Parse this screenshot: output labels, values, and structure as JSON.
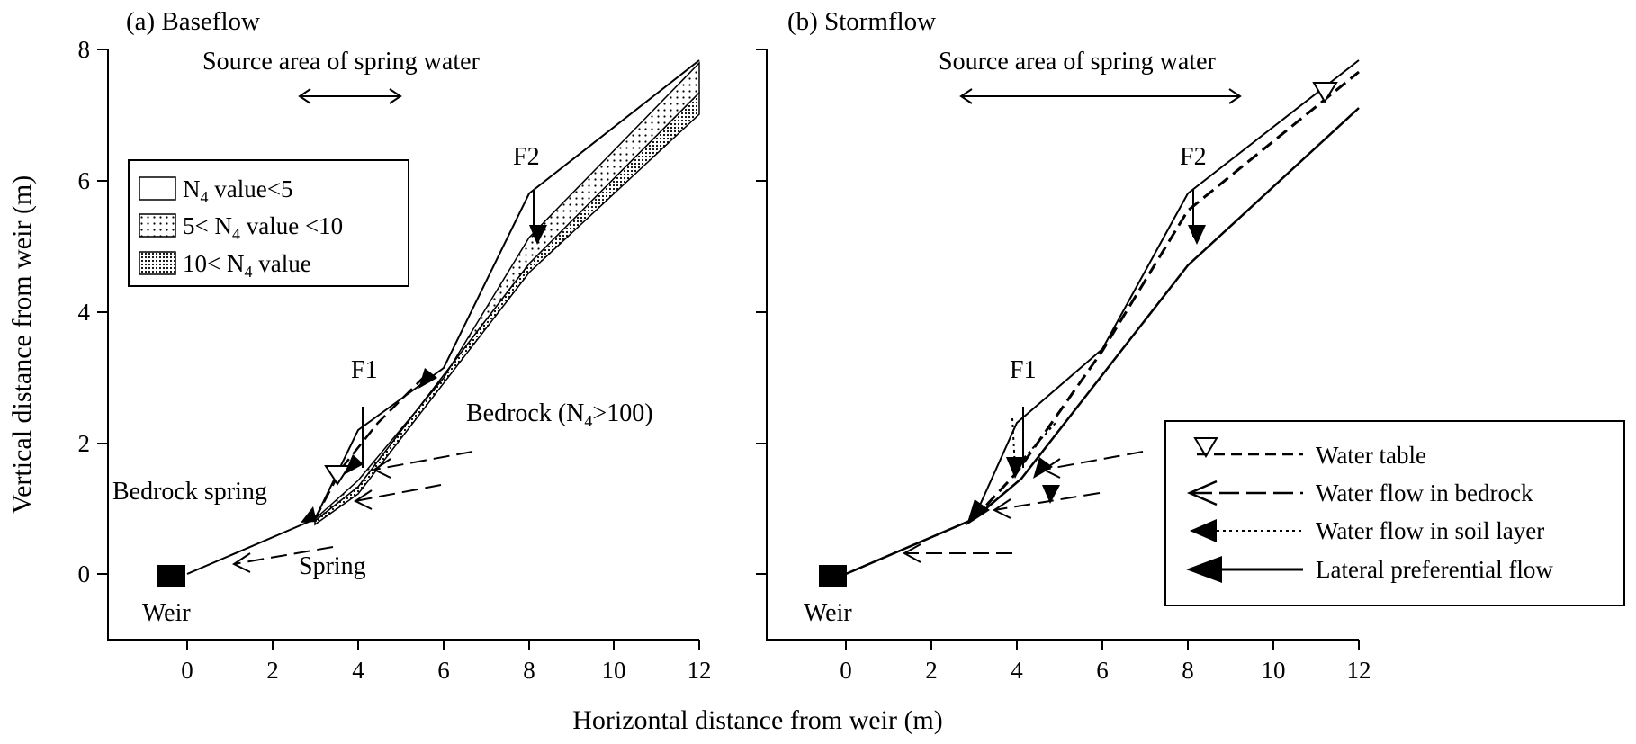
{
  "figure": {
    "xlabel": "Horizontal distance from weir (m)",
    "ylabel": "Vertical distance from weir (m)"
  },
  "axes": {
    "x_ticks": [
      "0",
      "2",
      "4",
      "6",
      "8",
      "10",
      "12"
    ],
    "y_ticks": [
      "0",
      "2",
      "4",
      "6",
      "8"
    ],
    "x_range": [
      -1.8,
      12
    ],
    "y_range": [
      -1,
      8
    ]
  },
  "panel_a": {
    "title": "(a) Baseflow",
    "source_area": "Source area of spring water",
    "fault_1": "F1",
    "fault_2": "F2",
    "bedrock_label": "Bedrock (N",
    "bedrock_sub": "4",
    "bedrock_suffix": ">100)",
    "bedrock_spring": "Bedrock spring",
    "spring": "Spring",
    "weir": "Weir",
    "legend": {
      "item1_a": "N",
      "item1_sub": "4",
      "item1_b": " value<5",
      "item2_a": "5< N",
      "item2_sub": "4",
      "item2_b": " value <10",
      "item3_a": "10< N",
      "item3_sub": "4",
      "item3_b": " value"
    }
  },
  "panel_b": {
    "title": "(b) Stormflow",
    "source_area": "Source area of spring water",
    "fault_1": "F1",
    "fault_2": "F2",
    "weir": "Weir",
    "legend": {
      "water_table": "Water table",
      "bedrock_flow": "Water flow in bedrock",
      "soil_flow": "Water flow in soil layer",
      "lateral_flow": "Lateral preferential flow"
    }
  },
  "chart_data": {
    "type": "diagram",
    "surface_profile_m": [
      [
        0,
        0
      ],
      [
        3,
        0.8
      ],
      [
        4,
        2.2
      ],
      [
        6,
        3.5
      ],
      [
        8,
        5.8
      ],
      [
        12,
        7.8
      ]
    ],
    "bedrock_surface_m": [
      [
        0,
        0
      ],
      [
        3,
        0.8
      ],
      [
        4,
        1.3
      ],
      [
        8,
        4.8
      ],
      [
        12,
        7.1
      ]
    ],
    "fault_positions_m": {
      "F1": 4.1,
      "F2": 8.1
    }
  }
}
